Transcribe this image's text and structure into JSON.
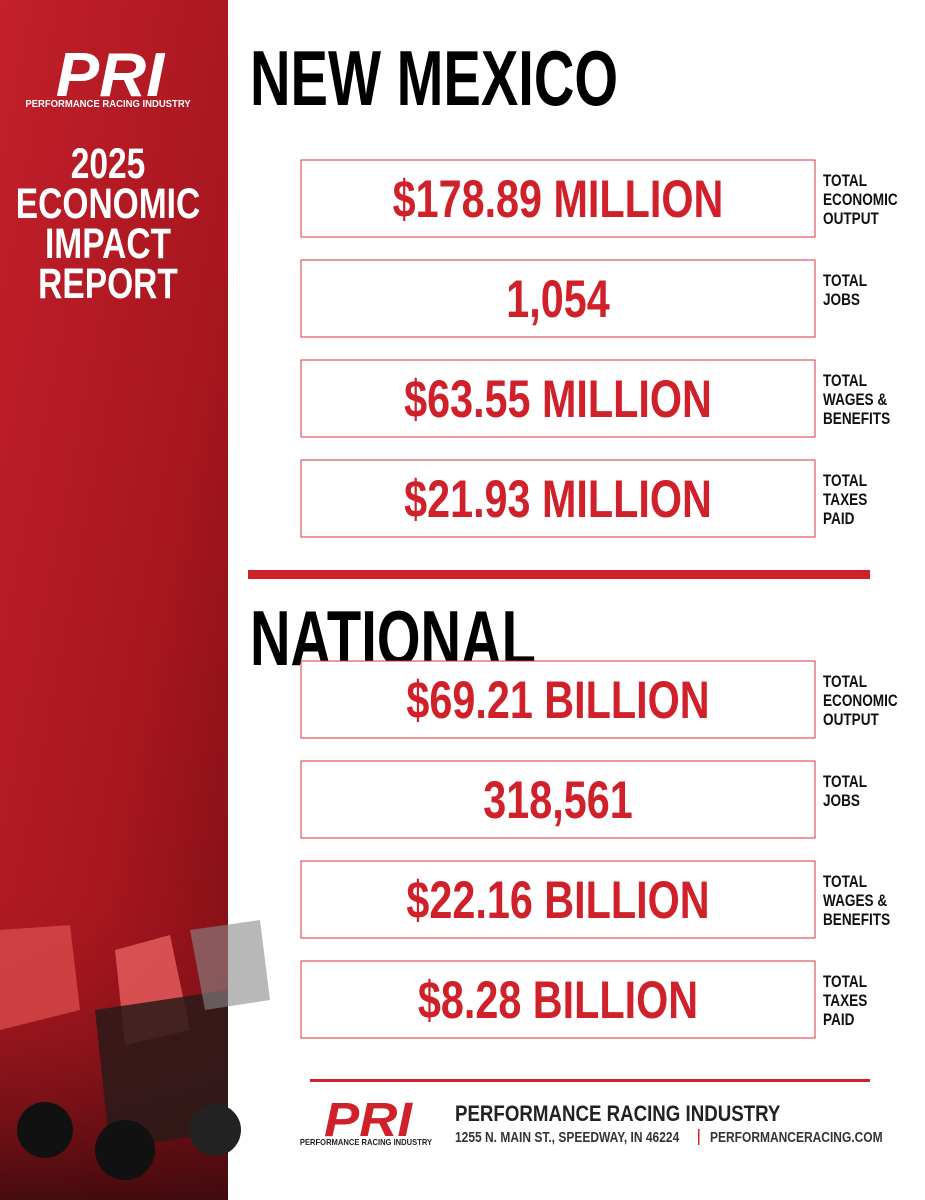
{
  "sidebar": {
    "logo": "PRI",
    "logo_tagline": "PERFORMANCE RACING INDUSTRY",
    "report_title": [
      "2025",
      "ECONOMIC",
      "IMPACT",
      "REPORT"
    ]
  },
  "sections": [
    {
      "title": "NEW MEXICO",
      "metrics": [
        {
          "value": "$178.89 MILLION",
          "label": [
            "TOTAL",
            "ECONOMIC",
            "OUTPUT"
          ]
        },
        {
          "value": "1,054",
          "label": [
            "TOTAL",
            "JOBS"
          ]
        },
        {
          "value": "$63.55 MILLION",
          "label": [
            "TOTAL",
            "WAGES &",
            "BENEFITS"
          ]
        },
        {
          "value": "$21.93 MILLION",
          "label": [
            "TOTAL",
            "TAXES",
            "PAID"
          ]
        }
      ]
    },
    {
      "title": "NATIONAL",
      "metrics": [
        {
          "value": "$69.21 BILLION",
          "label": [
            "TOTAL",
            "ECONOMIC",
            "OUTPUT"
          ]
        },
        {
          "value": "318,561",
          "label": [
            "TOTAL",
            "JOBS"
          ]
        },
        {
          "value": "$22.16 BILLION",
          "label": [
            "TOTAL",
            "WAGES &",
            "BENEFITS"
          ]
        },
        {
          "value": "$8.28 BILLION",
          "label": [
            "TOTAL",
            "TAXES",
            "PAID"
          ]
        }
      ]
    }
  ],
  "footer": {
    "logo": "PRI",
    "logo_tagline": "PERFORMANCE RACING INDUSTRY",
    "name": "PERFORMANCE RACING INDUSTRY",
    "address": "1255 N. MAIN ST., SPEEDWAY, IN 46224",
    "website": "PERFORMANCERACING.COM"
  }
}
